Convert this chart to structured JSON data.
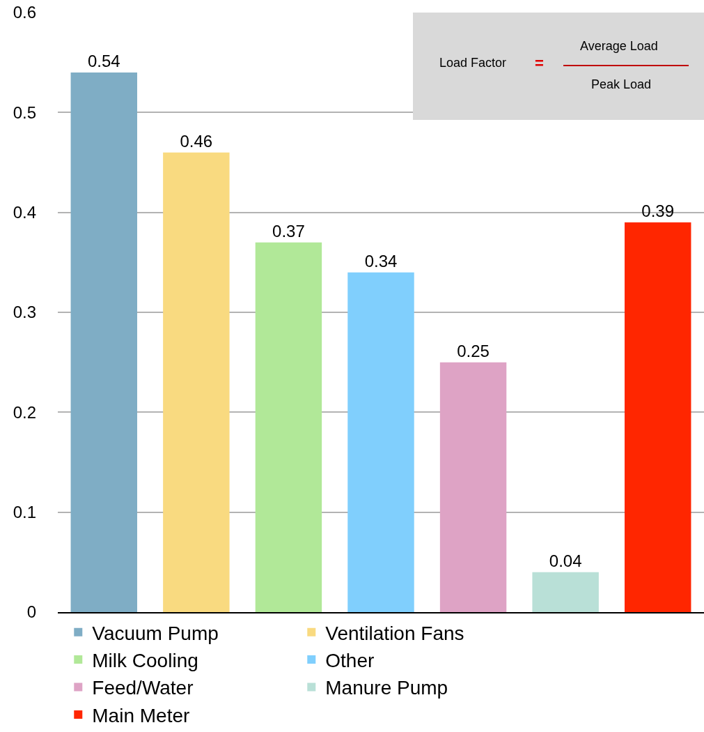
{
  "chart_data": {
    "type": "bar",
    "categories": [
      null,
      null,
      null,
      null,
      null,
      null,
      null
    ],
    "series": [
      {
        "name": "Vacuum Pump",
        "color": "#7fadc5",
        "values": [
          0.54,
          null,
          null,
          null,
          null,
          null,
          null
        ]
      },
      {
        "name": "Ventilation Fans",
        "color": "#f9da80",
        "values": [
          null,
          0.46,
          null,
          null,
          null,
          null,
          null
        ]
      },
      {
        "name": "Milk Cooling",
        "color": "#b1e898",
        "values": [
          null,
          null,
          0.37,
          null,
          null,
          null,
          null
        ]
      },
      {
        "name": "Other",
        "color": "#80cffd",
        "values": [
          null,
          null,
          null,
          0.34,
          null,
          null,
          null
        ]
      },
      {
        "name": "Feed/Water",
        "color": "#dea3c5",
        "values": [
          null,
          null,
          null,
          null,
          0.25,
          null,
          null
        ]
      },
      {
        "name": "Manure Pump",
        "color": "#b9e0d7",
        "values": [
          null,
          null,
          null,
          null,
          null,
          0.04,
          null
        ]
      },
      {
        "name": "Main Meter",
        "color": "#ff2600",
        "values": [
          null,
          null,
          null,
          null,
          null,
          null,
          0.39
        ]
      }
    ],
    "ylim": [
      0,
      0.6
    ],
    "yticks": [
      0,
      0.1,
      0.2,
      0.3,
      0.4,
      0.5,
      0.6
    ],
    "grid": "y",
    "legend": "bottom",
    "data_labels": true,
    "annotations": [
      "Load Factor",
      "=",
      "Average Load",
      "Peak Load"
    ]
  }
}
